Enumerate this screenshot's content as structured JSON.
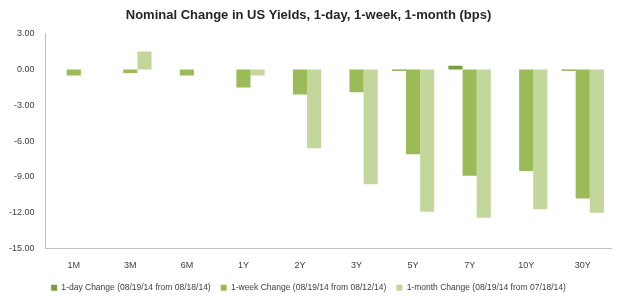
{
  "chart_data": {
    "type": "bar",
    "title": "Nominal Change in US Yields, 1-day, 1-week, 1-month (bps)",
    "categories": [
      "1M",
      "3M",
      "6M",
      "1Y",
      "2Y",
      "3Y",
      "5Y",
      "7Y",
      "10Y",
      "30Y"
    ],
    "series": [
      {
        "name": "1-day Change (08/19/14 from 08/18/14)",
        "color": "#77A03C",
        "values": [
          0,
          0,
          0,
          0,
          0,
          0,
          -0.1,
          0.3,
          0,
          -0.1
        ]
      },
      {
        "name": "1-week Change (08/19/14 from 08/12/14)",
        "color": "#9BBB59",
        "values": [
          -0.5,
          -0.3,
          -0.5,
          -1.5,
          -2.1,
          -1.9,
          -7.1,
          -8.9,
          -8.5,
          -10.8
        ]
      },
      {
        "name": "1-month Change (08/19/14 from 07/18/14)",
        "color": "#C3D69B",
        "values": [
          0,
          1.5,
          0,
          -0.5,
          -6.6,
          -9.6,
          -11.9,
          -12.4,
          -11.7,
          -12.0
        ]
      }
    ],
    "ylim": [
      -15,
      3
    ],
    "yticks": [
      {
        "value": 3,
        "label": "3.00"
      },
      {
        "value": 0,
        "label": "0.00"
      },
      {
        "value": -3,
        "label": "-3.00"
      },
      {
        "value": -6,
        "label": "-6.00"
      },
      {
        "value": -9,
        "label": "-9.00"
      },
      {
        "value": -12,
        "label": "-12.00"
      },
      {
        "value": -15,
        "label": "-15.00"
      }
    ],
    "grid": false,
    "legend": "bottom"
  }
}
